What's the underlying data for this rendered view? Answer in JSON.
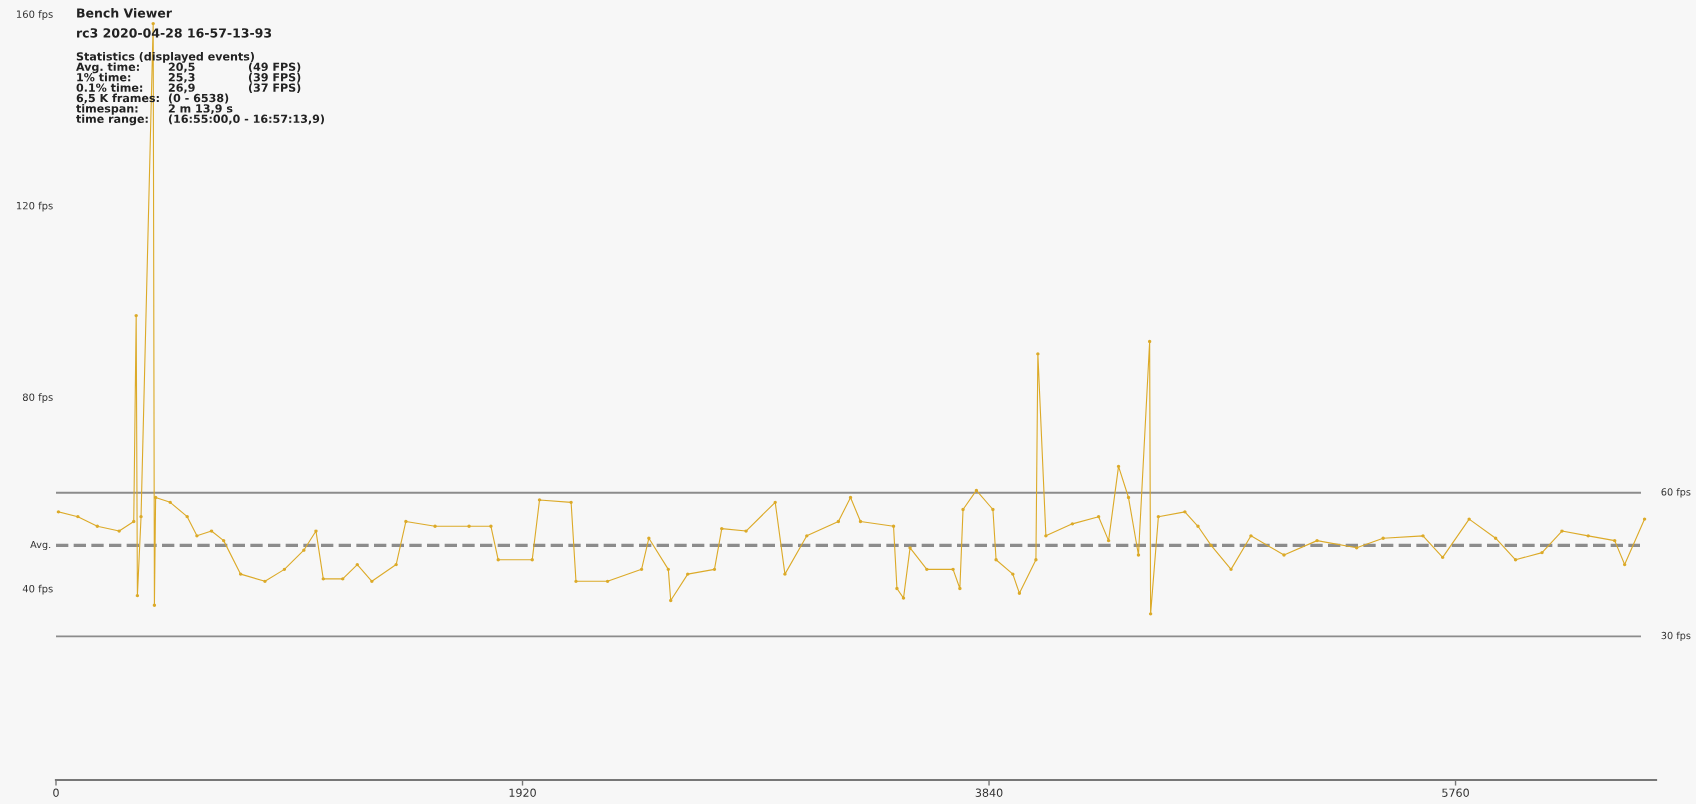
{
  "chart_data": {
    "type": "line",
    "title": "Bench Viewer",
    "subtitle": "rc3 2020-04-28 16-57-13-93",
    "annotations": [
      "Statistics (displayed events)",
      "Avg. time:\t20,5\t(49 FPS)",
      "1% time:\t25,3\t(39 FPS)",
      "0.1% time:\t26,9\t(37 FPS)",
      "6,5 K frames:\t(0 - 6538)",
      "timespan:\t2 m 13,9 s",
      "time range:\t(16:55:00,0 - 16:57:13,9)"
    ],
    "x": [
      10,
      90,
      170,
      260,
      320,
      330,
      335,
      350,
      400,
      405,
      410,
      470,
      540,
      580,
      640,
      690,
      760,
      860,
      940,
      1020,
      1070,
      1100,
      1180,
      1240,
      1300,
      1400,
      1440,
      1560,
      1700,
      1790,
      1820,
      1960,
      1990,
      2120,
      2140,
      2270,
      2410,
      2440,
      2520,
      2530,
      2600,
      2710,
      2740,
      2840,
      2960,
      3000,
      3090,
      3220,
      3270,
      3311,
      3447,
      3461,
      3488,
      3515,
      3584,
      3692,
      3720,
      3733,
      3788,
      3856,
      3869,
      3938,
      3965,
      4033,
      4041,
      4074,
      4183,
      4291,
      4332,
      4373,
      4414,
      4455,
      4501,
      4505,
      4537,
      4646,
      4700,
      4754,
      4836,
      4918,
      5054,
      5190,
      5353,
      5462,
      5626,
      5707,
      5816,
      5925,
      6007,
      6116,
      6198,
      6306,
      6415,
      6456,
      6538
    ],
    "series": [
      {
        "color": "#dcaa28",
        "values": [
          56,
          55,
          53,
          52,
          54,
          97,
          38.5,
          55,
          158,
          36.5,
          59,
          58,
          55,
          51,
          52,
          50,
          43,
          41.5,
          44,
          48,
          52,
          42,
          42,
          45,
          41.5,
          45,
          54,
          53,
          53,
          53,
          46,
          46,
          58.5,
          58,
          41.5,
          41.5,
          44,
          50.5,
          44,
          37.5,
          43,
          44,
          52.5,
          52,
          58,
          43,
          51,
          54,
          59,
          54,
          53,
          40,
          38,
          48.5,
          44,
          44,
          40,
          56.5,
          60.5,
          56.5,
          46,
          43,
          39,
          46,
          89,
          51,
          53.5,
          55,
          50,
          65.5,
          59,
          47,
          91.6,
          34.7,
          55,
          56,
          53,
          49,
          44,
          51,
          47,
          50,
          48.5,
          50.5,
          51,
          46.5,
          54.5,
          50.5,
          46,
          47.5,
          52,
          51,
          50,
          45,
          54.5
        ]
      }
    ],
    "marker": "circle",
    "line_style": "solid",
    "xlim": [
      0,
      6585
    ],
    "ylim": [
      0,
      160
    ],
    "xticks": [
      0,
      1920,
      3840,
      5760
    ],
    "yticks": [
      {
        "value": 40,
        "label": "40 fps"
      },
      {
        "value": 80,
        "label": "80 fps"
      },
      {
        "value": 120,
        "label": "120 fps"
      },
      {
        "value": 160,
        "label": "160 fps"
      }
    ],
    "ref_lines": [
      {
        "axis": "y",
        "value": 60,
        "label": "60 fps",
        "color": "#8c8c8c",
        "line_style": "solid"
      },
      {
        "axis": "y",
        "value": 49,
        "label": "Avg.",
        "color": "#8c8c8c",
        "line_style": "dashed"
      },
      {
        "axis": "y",
        "value": 30,
        "label": "30 fps",
        "color": "#8c8c8c",
        "line_style": "solid"
      }
    ]
  }
}
